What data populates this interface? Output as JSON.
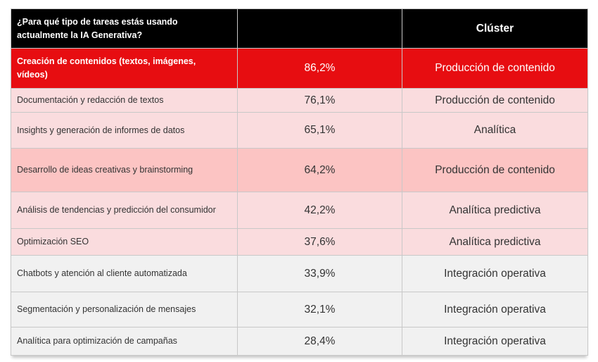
{
  "table": {
    "header": {
      "question": "¿Para qué tipo de tareas estás usando actualmente la IA Generativa?",
      "value_label": "",
      "cluster_label": "Clúster"
    },
    "rows": [
      {
        "task": "Creación de contenidos (textos, imágenes, vídeos)",
        "value": "86,2%",
        "cluster": "Producción de contenido",
        "tone": "red"
      },
      {
        "task": "Documentación y redacción de textos",
        "value": "76,1%",
        "cluster": "Producción de contenido",
        "tone": "pink"
      },
      {
        "task": "Insights y generación de informes de datos",
        "value": "65,1%",
        "cluster": "Analítica",
        "tone": "pink"
      },
      {
        "task": "Desarrollo de ideas creativas y brainstorming",
        "value": "64,2%",
        "cluster": "Producción de contenido",
        "tone": "salmon"
      },
      {
        "task": "Análisis de tendencias y predicción del consumidor",
        "value": "42,2%",
        "cluster": "Analítica predictiva",
        "tone": "pink"
      },
      {
        "task": "Optimización SEO",
        "value": "37,6%",
        "cluster": "Analítica predictiva",
        "tone": "pink"
      },
      {
        "task": "Chatbots y atención al cliente automatizada",
        "value": "33,9%",
        "cluster": "Integración operativa",
        "tone": "gray"
      },
      {
        "task": "Segmentación y personalización de mensajes",
        "value": "32,1%",
        "cluster": "Integración operativa",
        "tone": "gray"
      },
      {
        "task": "Analítica para optimización de campañas",
        "value": "28,4%",
        "cluster": "Integración operativa",
        "tone": "gray"
      }
    ]
  },
  "colors": {
    "header-bg": "#000000",
    "header-text": "#ffffff",
    "red": "#e70d11",
    "pink": "#fadcde",
    "salmon": "#fcc4c3",
    "grayrow": "#f1f1f1",
    "border": "#c8c8c8",
    "text": "#333333"
  },
  "chart_data": {
    "type": "table",
    "title": "¿Para qué tipo de tareas estás usando actualmente la IA Generativa?",
    "columns": [
      "¿Para qué tipo de tareas estás usando actualmente la IA Generativa?",
      "",
      "Clúster"
    ],
    "categories": [
      "Creación de contenidos (textos, imágenes, vídeos)",
      "Documentación y redacción de textos",
      "Insights y generación de informes de datos",
      "Desarrollo de ideas creativas y brainstorming",
      "Análisis de tendencias y predicción del consumidor",
      "Optimización SEO",
      "Chatbots y atención al cliente automatizada",
      "Segmentación y personalización de mensajes",
      "Analítica para optimización de campañas"
    ],
    "values": [
      86.2,
      76.1,
      65.1,
      64.2,
      42.2,
      37.6,
      33.9,
      32.1,
      28.4
    ],
    "clusters": [
      "Producción de contenido",
      "Producción de contenido",
      "Analítica",
      "Producción de contenido",
      "Analítica predictiva",
      "Analítica predictiva",
      "Integración operativa",
      "Integración operativa",
      "Integración operativa"
    ],
    "value_format": "percent, comma decimal separator",
    "highlighted_row": "Creación de contenidos (textos, imágenes, vídeos)"
  }
}
